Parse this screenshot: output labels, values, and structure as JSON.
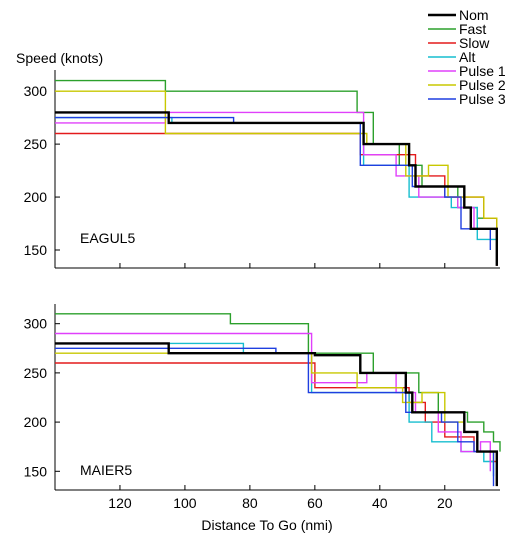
{
  "chart_data": {
    "type": "line",
    "ylabel": "Speed (knots)",
    "xlabel": "Distance To Go (nmi)",
    "xlim": [
      140,
      3
    ],
    "x_ticks": [
      120,
      100,
      80,
      60,
      40,
      20
    ],
    "y_ticks": [
      150,
      200,
      250,
      300
    ],
    "legend": {
      "placement": "top-right",
      "entries": [
        {
          "name": "Nom",
          "color": "#000000"
        },
        {
          "name": "Fast",
          "color": "#2ca02c"
        },
        {
          "name": "Slow",
          "color": "#e31a1c"
        },
        {
          "name": "Alt",
          "color": "#17becf"
        },
        {
          "name": "Pulse 1",
          "color": "#e040fb"
        },
        {
          "name": "Pulse 2",
          "color": "#c8c800"
        },
        {
          "name": "Pulse 3",
          "color": "#1f3fe0"
        }
      ]
    },
    "panels": [
      {
        "label": "EAGUL5",
        "ylim": [
          133,
          320
        ],
        "series": [
          {
            "name": "Nom",
            "color": "#000000",
            "width": 2.4,
            "points": [
              [
                140,
                280
              ],
              [
                105,
                280
              ],
              [
                105,
                270
              ],
              [
                45,
                270
              ],
              [
                45,
                250
              ],
              [
                31,
                250
              ],
              [
                31,
                230
              ],
              [
                29,
                230
              ],
              [
                29,
                210
              ],
              [
                14,
                210
              ],
              [
                14,
                190
              ],
              [
                12,
                190
              ],
              [
                12,
                170
              ],
              [
                4,
                170
              ],
              [
                4,
                135
              ]
            ]
          },
          {
            "name": "Fast",
            "color": "#2ca02c",
            "width": 1.4,
            "points": [
              [
                140,
                310
              ],
              [
                106,
                310
              ],
              [
                106,
                300
              ],
              [
                47,
                300
              ],
              [
                47,
                280
              ],
              [
                42,
                280
              ],
              [
                42,
                250
              ],
              [
                34,
                250
              ],
              [
                34,
                230
              ],
              [
                27,
                230
              ],
              [
                27,
                210
              ],
              [
                16,
                210
              ],
              [
                16,
                190
              ],
              [
                10,
                190
              ],
              [
                10,
                180
              ],
              [
                4,
                180
              ],
              [
                4,
                150
              ]
            ]
          },
          {
            "name": "Slow",
            "color": "#e31a1c",
            "width": 1.4,
            "points": [
              [
                140,
                260
              ],
              [
                46,
                260
              ],
              [
                46,
                240
              ],
              [
                29,
                240
              ],
              [
                29,
                220
              ],
              [
                20,
                220
              ],
              [
                20,
                200
              ],
              [
                8,
                200
              ],
              [
                8,
                180
              ],
              [
                4,
                180
              ],
              [
                4,
                135
              ]
            ]
          },
          {
            "name": "Alt",
            "color": "#17becf",
            "width": 1.4,
            "points": [
              [
                140,
                275
              ],
              [
                104,
                275
              ],
              [
                104,
                270
              ],
              [
                45,
                270
              ],
              [
                45,
                230
              ],
              [
                31,
                230
              ],
              [
                31,
                200
              ],
              [
                18,
                200
              ],
              [
                18,
                190
              ],
              [
                10,
                190
              ],
              [
                10,
                160
              ],
              [
                4,
                160
              ],
              [
                4,
                150
              ]
            ]
          },
          {
            "name": "Pulse 1",
            "color": "#e040fb",
            "width": 1.4,
            "points": [
              [
                140,
                270
              ],
              [
                106,
                270
              ],
              [
                106,
                280
              ],
              [
                45,
                280
              ],
              [
                45,
                240
              ],
              [
                35,
                240
              ],
              [
                35,
                220
              ],
              [
                28,
                220
              ],
              [
                28,
                200
              ],
              [
                16,
                200
              ],
              [
                16,
                190
              ],
              [
                11,
                190
              ],
              [
                11,
                170
              ],
              [
                4,
                170
              ],
              [
                4,
                155
              ]
            ]
          },
          {
            "name": "Pulse 2",
            "color": "#c8c800",
            "width": 1.4,
            "points": [
              [
                140,
                300
              ],
              [
                106,
                300
              ],
              [
                106,
                260
              ],
              [
                44,
                260
              ],
              [
                44,
                250
              ],
              [
                32,
                250
              ],
              [
                32,
                220
              ],
              [
                25,
                220
              ],
              [
                25,
                230
              ],
              [
                19,
                230
              ],
              [
                19,
                200
              ],
              [
                8,
                200
              ],
              [
                8,
                180
              ],
              [
                4,
                180
              ],
              [
                4,
                160
              ]
            ]
          },
          {
            "name": "Pulse 3",
            "color": "#1f3fe0",
            "width": 1.4,
            "points": [
              [
                140,
                275
              ],
              [
                85,
                275
              ],
              [
                85,
                270
              ],
              [
                46,
                270
              ],
              [
                46,
                230
              ],
              [
                30,
                230
              ],
              [
                30,
                210
              ],
              [
                20,
                210
              ],
              [
                20,
                200
              ],
              [
                15,
                200
              ],
              [
                15,
                170
              ],
              [
                6,
                170
              ],
              [
                6,
                150
              ]
            ]
          }
        ]
      },
      {
        "label": "MAIER5",
        "ylim": [
          131,
          320
        ],
        "series": [
          {
            "name": "Nom",
            "color": "#000000",
            "width": 2.4,
            "points": [
              [
                140,
                280
              ],
              [
                105,
                280
              ],
              [
                105,
                270
              ],
              [
                60,
                270
              ],
              [
                60,
                268
              ],
              [
                46,
                268
              ],
              [
                46,
                250
              ],
              [
                32,
                250
              ],
              [
                32,
                230
              ],
              [
                30,
                230
              ],
              [
                30,
                210
              ],
              [
                20,
                210
              ],
              [
                14,
                210
              ],
              [
                14,
                190
              ],
              [
                10,
                190
              ],
              [
                10,
                170
              ],
              [
                4,
                170
              ],
              [
                4,
                135
              ]
            ]
          },
          {
            "name": "Fast",
            "color": "#2ca02c",
            "width": 1.4,
            "points": [
              [
                140,
                310
              ],
              [
                86,
                310
              ],
              [
                86,
                300
              ],
              [
                62,
                300
              ],
              [
                62,
                270
              ],
              [
                42,
                270
              ],
              [
                42,
                250
              ],
              [
                28,
                250
              ],
              [
                28,
                230
              ],
              [
                22,
                230
              ],
              [
                22,
                210
              ],
              [
                13,
                210
              ],
              [
                13,
                200
              ],
              [
                8,
                200
              ],
              [
                8,
                190
              ],
              [
                5,
                190
              ],
              [
                5,
                180
              ],
              [
                3,
                180
              ],
              [
                3,
                170
              ]
            ]
          },
          {
            "name": "Slow",
            "color": "#e31a1c",
            "width": 1.4,
            "points": [
              [
                140,
                260
              ],
              [
                60,
                260
              ],
              [
                60,
                235
              ],
              [
                31,
                235
              ],
              [
                31,
                220
              ],
              [
                26,
                220
              ],
              [
                26,
                200
              ],
              [
                20,
                200
              ],
              [
                20,
                185
              ],
              [
                11,
                185
              ],
              [
                11,
                170
              ],
              [
                6,
                170
              ],
              [
                6,
                160
              ],
              [
                4,
                160
              ],
              [
                4,
                140
              ]
            ]
          },
          {
            "name": "Alt",
            "color": "#17becf",
            "width": 1.4,
            "points": [
              [
                140,
                280
              ],
              [
                82,
                280
              ],
              [
                82,
                270
              ],
              [
                61,
                270
              ],
              [
                61,
                230
              ],
              [
                44,
                230
              ],
              [
                44,
                230
              ],
              [
                31,
                230
              ],
              [
                31,
                200
              ],
              [
                24,
                200
              ],
              [
                24,
                180
              ],
              [
                15,
                180
              ],
              [
                15,
                170
              ],
              [
                8,
                170
              ],
              [
                8,
                160
              ],
              [
                5,
                160
              ],
              [
                5,
                145
              ]
            ]
          },
          {
            "name": "Pulse 1",
            "color": "#e040fb",
            "width": 1.4,
            "points": [
              [
                140,
                290
              ],
              [
                61,
                290
              ],
              [
                61,
                240
              ],
              [
                44,
                240
              ],
              [
                44,
                250
              ],
              [
                35,
                250
              ],
              [
                35,
                230
              ],
              [
                29,
                230
              ],
              [
                29,
                210
              ],
              [
                22,
                210
              ],
              [
                22,
                190
              ],
              [
                15,
                190
              ],
              [
                15,
                170
              ],
              [
                9,
                170
              ],
              [
                9,
                180
              ],
              [
                6,
                180
              ],
              [
                6,
                150
              ]
            ]
          },
          {
            "name": "Pulse 2",
            "color": "#c8c800",
            "width": 1.4,
            "points": [
              [
                140,
                270
              ],
              [
                61,
                270
              ],
              [
                61,
                250
              ],
              [
                47,
                250
              ],
              [
                47,
                235
              ],
              [
                33,
                235
              ],
              [
                33,
                220
              ],
              [
                27,
                220
              ],
              [
                27,
                230
              ],
              [
                20,
                230
              ],
              [
                20,
                200
              ],
              [
                14,
                200
              ],
              [
                14,
                190
              ],
              [
                10,
                190
              ],
              [
                10,
                170
              ],
              [
                5,
                170
              ],
              [
                5,
                160
              ]
            ]
          },
          {
            "name": "Pulse 3",
            "color": "#1f3fe0",
            "width": 1.4,
            "points": [
              [
                140,
                275
              ],
              [
                72,
                275
              ],
              [
                72,
                270
              ],
              [
                62,
                270
              ],
              [
                62,
                230
              ],
              [
                45,
                230
              ],
              [
                45,
                230
              ],
              [
                32,
                230
              ],
              [
                32,
                210
              ],
              [
                21,
                210
              ],
              [
                21,
                200
              ],
              [
                16,
                200
              ],
              [
                16,
                180
              ],
              [
                11,
                180
              ],
              [
                11,
                170
              ],
              [
                5,
                170
              ],
              [
                5,
                135
              ]
            ]
          }
        ]
      }
    ]
  }
}
